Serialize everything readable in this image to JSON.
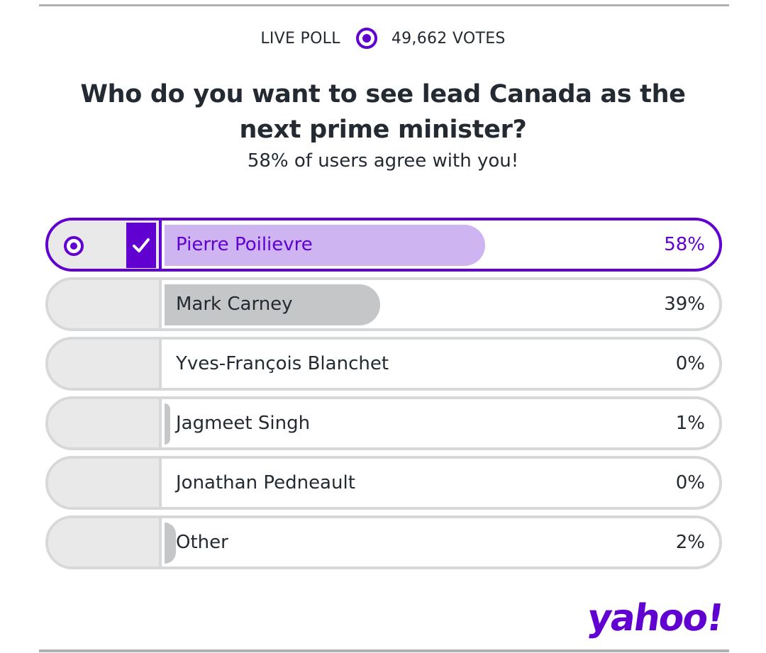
{
  "header": {
    "live_label": "LIVE POLL",
    "votes_label": "49,662 VOTES"
  },
  "question": "Who do you want to see lead Canada as the next prime minister?",
  "agree_text": "58% of users agree with you!",
  "options": [
    {
      "label": "Pierre Poilievre",
      "percent_text": "58%",
      "percent": 58,
      "selected": true
    },
    {
      "label": "Mark Carney",
      "percent_text": "39%",
      "percent": 39,
      "selected": false
    },
    {
      "label": "Yves-François Blanchet",
      "percent_text": "0%",
      "percent": 0,
      "selected": false
    },
    {
      "label": "Jagmeet Singh",
      "percent_text": "1%",
      "percent": 1,
      "selected": false
    },
    {
      "label": "Jonathan Pedneault",
      "percent_text": "0%",
      "percent": 0,
      "selected": false
    },
    {
      "label": "Other",
      "percent_text": "2%",
      "percent": 2,
      "selected": false
    }
  ],
  "logo": "yahoo!",
  "colors": {
    "accent": "#6001d2",
    "selected_bar": "#cfb4f2",
    "bar": "#c5c6c8",
    "border": "#d6d8da"
  },
  "icons": {
    "live": "radio-dot-icon",
    "selected": "checkmark-icon"
  }
}
